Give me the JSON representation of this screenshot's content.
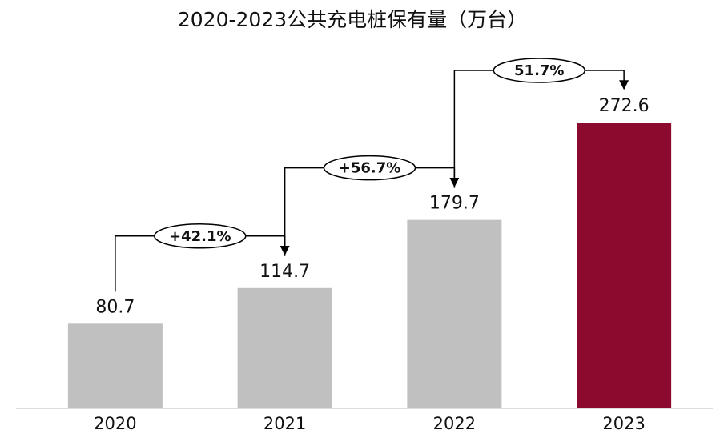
{
  "chart_data": {
    "type": "bar",
    "title": "2020-2023公共充电桩保有量（万台）",
    "categories": [
      "2020",
      "2021",
      "2022",
      "2023"
    ],
    "values": [
      80.7,
      114.7,
      179.7,
      272.6
    ],
    "colors": [
      "#c0c0c0",
      "#c0c0c0",
      "#c0c0c0",
      "#8b0a2e"
    ],
    "growth": [
      {
        "value": 42.1,
        "label": "+42.1%"
      },
      {
        "value": 56.7,
        "label": "+56.7%"
      },
      {
        "value": 51.7,
        "label": "51.7%"
      }
    ]
  }
}
